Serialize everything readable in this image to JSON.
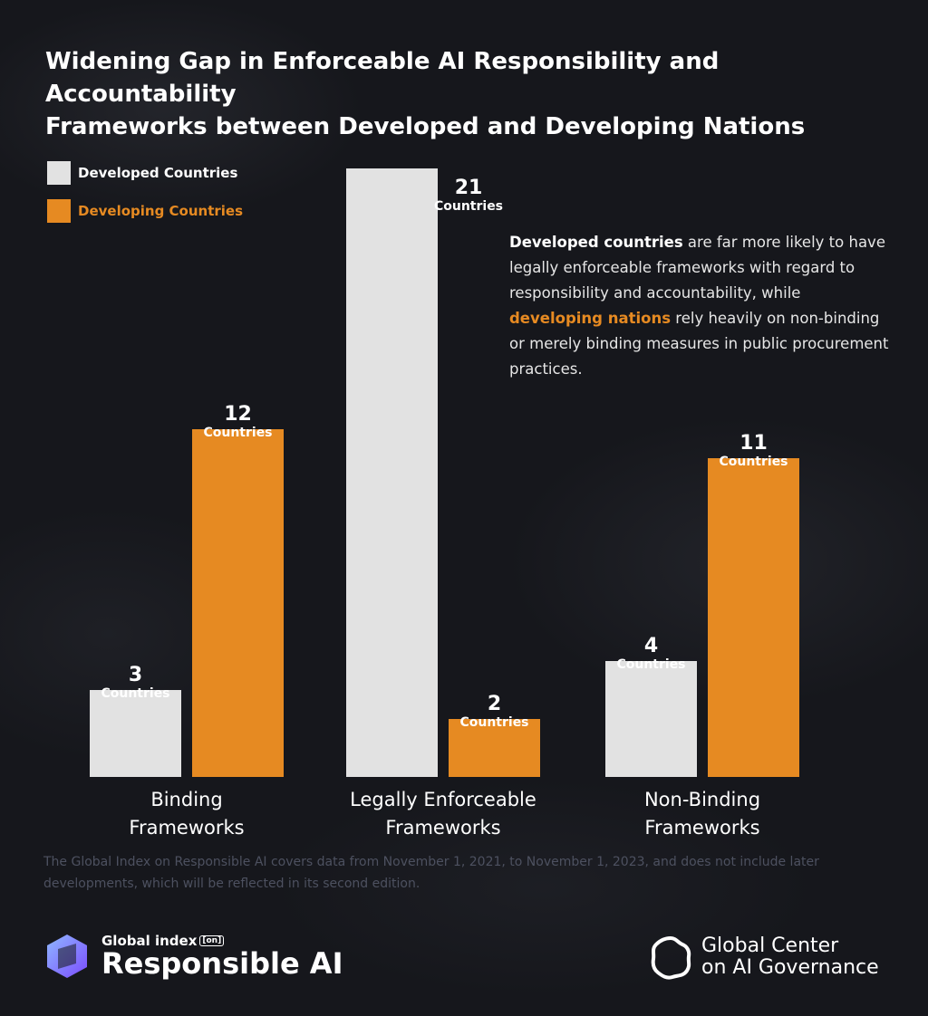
{
  "title_line1": "Widening Gap in Enforceable AI Responsibility and Accountability",
  "title_line2": "Frameworks between Developed and Developing Nations",
  "chart_data": {
    "type": "bar",
    "categories": [
      [
        "Binding",
        "Frameworks"
      ],
      [
        "Legally Enforceable",
        "Frameworks"
      ],
      [
        "Non-Binding",
        "Frameworks"
      ]
    ],
    "series": [
      {
        "name": "Developed Countries",
        "values": [
          3,
          21,
          4
        ],
        "color": "#e2e2e2"
      },
      {
        "name": "Developing Countries",
        "values": [
          12,
          2,
          11
        ],
        "color": "#e68a22"
      }
    ],
    "value_unit_label": "Countries",
    "ylim": [
      0,
      21
    ],
    "grid": false,
    "legend": "top-left"
  },
  "callout": {
    "part1": "Developed countries",
    "part2": " are far more likely to have legally enforceable frameworks with regard to responsibility and accountability, while ",
    "part3": "developing nations",
    "part4": " rely heavily on non-binding or merely binding measures in public procurement practices."
  },
  "note": "The Global Index on Responsible AI covers data from November 1, 2021, to November 1, 2023, and does not include later developments, which will be reflected in its second edition.",
  "logo_left": {
    "sub": "Global index",
    "tag": "[on]",
    "main": "Responsible AI"
  },
  "logo_right": {
    "line1": "Global Center",
    "line2": "on AI Governance"
  },
  "colors": {
    "background": "#16171c",
    "developed": "#e2e2e2",
    "developing": "#e68a22"
  }
}
